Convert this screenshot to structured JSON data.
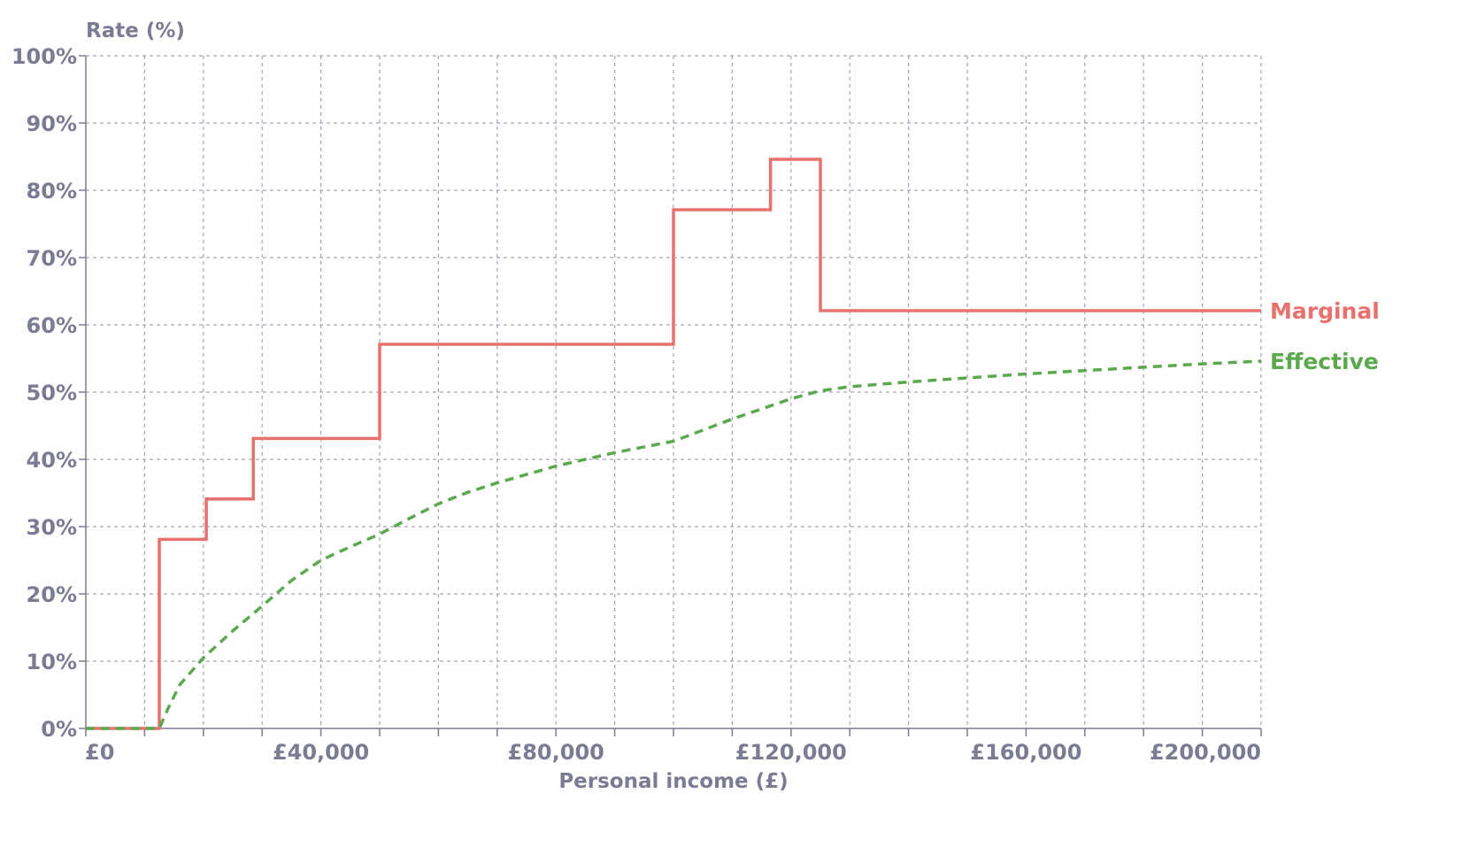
{
  "chart_data": {
    "type": "line",
    "title": "",
    "ylabel": "Rate (%)",
    "xlabel": "Personal income (£)",
    "xlim": [
      0,
      200000
    ],
    "ylim": [
      0,
      100
    ],
    "x_tick_values": [
      0,
      10000,
      20000,
      30000,
      40000,
      50000,
      60000,
      70000,
      80000,
      90000,
      100000,
      110000,
      120000,
      130000,
      140000,
      150000,
      160000,
      170000,
      180000,
      190000,
      200000
    ],
    "x_tick_labels": [
      {
        "value": 0,
        "label": "£0"
      },
      {
        "value": 40000,
        "label": "£40,000"
      },
      {
        "value": 80000,
        "label": "£80,000"
      },
      {
        "value": 120000,
        "label": "£120,000"
      },
      {
        "value": 160000,
        "label": "£160,000"
      },
      {
        "value": 200000,
        "label": "£200,000"
      }
    ],
    "y_ticks": [
      {
        "value": 0,
        "label": "0%"
      },
      {
        "value": 10,
        "label": "10%"
      },
      {
        "value": 20,
        "label": "20%"
      },
      {
        "value": 30,
        "label": "30%"
      },
      {
        "value": 40,
        "label": "40%"
      },
      {
        "value": 50,
        "label": "50%"
      },
      {
        "value": 60,
        "label": "60%"
      },
      {
        "value": 70,
        "label": "70%"
      },
      {
        "value": 80,
        "label": "80%"
      },
      {
        "value": 90,
        "label": "90%"
      },
      {
        "value": 100,
        "label": "100%"
      }
    ],
    "grid": true,
    "series": [
      {
        "name": "Marginal",
        "color": "#e8706d",
        "style": "solid-step",
        "points": [
          [
            0,
            0
          ],
          [
            12500,
            0
          ],
          [
            12500,
            28.1
          ],
          [
            20500,
            28.1
          ],
          [
            20500,
            34.1
          ],
          [
            28500,
            34.1
          ],
          [
            28500,
            43.1
          ],
          [
            50000,
            43.1
          ],
          [
            50000,
            57.1
          ],
          [
            100000,
            57.1
          ],
          [
            100000,
            77.1
          ],
          [
            116500,
            77.1
          ],
          [
            116500,
            84.6
          ],
          [
            125000,
            84.6
          ],
          [
            125000,
            62.1
          ],
          [
            200000,
            62.1
          ]
        ]
      },
      {
        "name": "Effective",
        "color": "#5ba84f",
        "style": "dashed",
        "points": [
          [
            0,
            0
          ],
          [
            12500,
            0
          ],
          [
            14000,
            3
          ],
          [
            16000,
            6.5
          ],
          [
            20000,
            10.5
          ],
          [
            25000,
            14.5
          ],
          [
            30000,
            18.2
          ],
          [
            35000,
            22
          ],
          [
            40000,
            25
          ],
          [
            45000,
            27
          ],
          [
            50000,
            28.9
          ],
          [
            55000,
            31.2
          ],
          [
            60000,
            33.4
          ],
          [
            65000,
            35.1
          ],
          [
            70000,
            36.5
          ],
          [
            80000,
            39
          ],
          [
            90000,
            41
          ],
          [
            100000,
            42.7
          ],
          [
            110000,
            46
          ],
          [
            120000,
            49
          ],
          [
            125000,
            50.2
          ],
          [
            130000,
            50.8
          ],
          [
            140000,
            51.5
          ],
          [
            150000,
            52.1
          ],
          [
            160000,
            52.7
          ],
          [
            170000,
            53.2
          ],
          [
            180000,
            53.7
          ],
          [
            190000,
            54.2
          ],
          [
            200000,
            54.6
          ]
        ]
      }
    ]
  }
}
